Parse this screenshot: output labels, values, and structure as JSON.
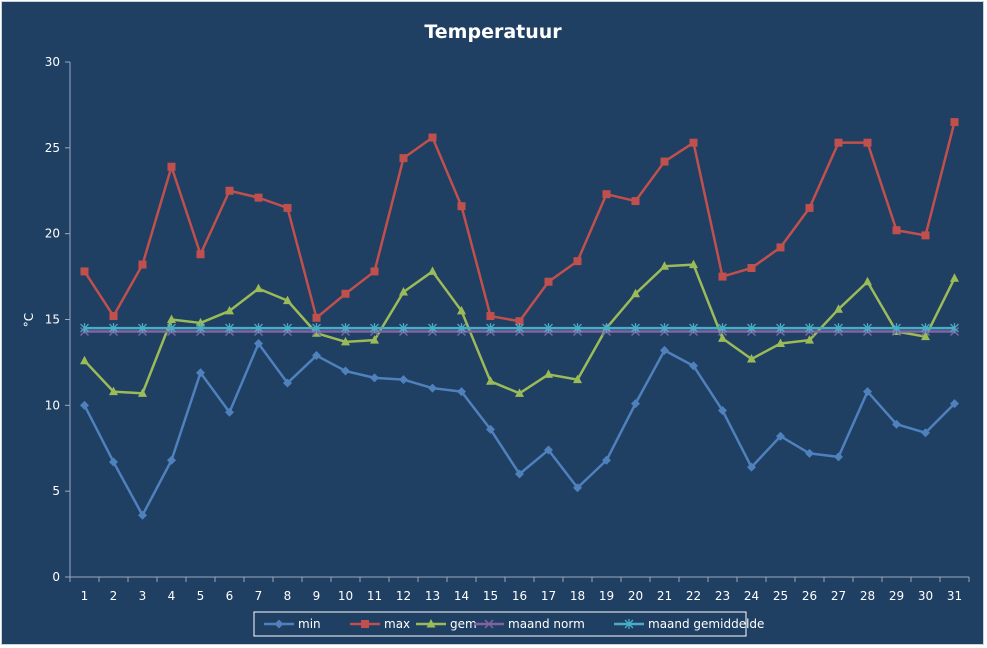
{
  "chart_data": {
    "type": "line",
    "title": "Temperatuur",
    "xlabel": "",
    "ylabel": "°C",
    "ylim": [
      0,
      30
    ],
    "yticks": [
      0,
      5,
      10,
      15,
      20,
      25,
      30
    ],
    "grid": false,
    "legend_position": "bottom",
    "categories": [
      "1",
      "2",
      "3",
      "4",
      "5",
      "6",
      "7",
      "8",
      "9",
      "10",
      "11",
      "12",
      "13",
      "14",
      "15",
      "16",
      "17",
      "18",
      "19",
      "20",
      "21",
      "22",
      "23",
      "24",
      "25",
      "26",
      "27",
      "28",
      "29",
      "30",
      "31"
    ],
    "series": [
      {
        "name": "min",
        "color": "#4f81bd",
        "marker": "diamond",
        "values": [
          10.0,
          6.7,
          3.6,
          6.8,
          11.9,
          9.6,
          13.6,
          11.3,
          12.9,
          12.0,
          11.6,
          11.5,
          11.0,
          10.8,
          8.6,
          6.0,
          7.4,
          5.2,
          6.8,
          10.1,
          13.2,
          12.3,
          9.7,
          6.4,
          8.2,
          7.2,
          7.0,
          10.8,
          8.9,
          8.4,
          10.1
        ]
      },
      {
        "name": "max",
        "color": "#c0504d",
        "marker": "square",
        "values": [
          17.8,
          15.2,
          18.2,
          23.9,
          18.8,
          22.5,
          22.1,
          21.5,
          15.1,
          16.5,
          17.8,
          24.4,
          25.6,
          21.6,
          15.2,
          14.9,
          17.2,
          18.4,
          22.3,
          21.9,
          24.2,
          25.3,
          17.5,
          18.0,
          19.2,
          21.5,
          25.3,
          25.3,
          20.2,
          19.9,
          26.5
        ]
      },
      {
        "name": "gem",
        "color": "#9bbb59",
        "marker": "triangle",
        "values": [
          12.6,
          10.8,
          10.7,
          15.0,
          14.8,
          15.5,
          16.8,
          16.1,
          14.2,
          13.7,
          13.8,
          16.6,
          17.8,
          15.5,
          11.4,
          10.7,
          11.8,
          11.5,
          14.5,
          16.5,
          18.1,
          18.2,
          13.9,
          12.7,
          13.6,
          13.8,
          15.6,
          17.2,
          14.3,
          14.0,
          17.4
        ]
      },
      {
        "name": "maand norm",
        "color": "#8064a2",
        "marker": "x",
        "values": [
          14.3,
          14.3,
          14.3,
          14.3,
          14.3,
          14.3,
          14.3,
          14.3,
          14.3,
          14.3,
          14.3,
          14.3,
          14.3,
          14.3,
          14.3,
          14.3,
          14.3,
          14.3,
          14.3,
          14.3,
          14.3,
          14.3,
          14.3,
          14.3,
          14.3,
          14.3,
          14.3,
          14.3,
          14.3,
          14.3,
          14.3
        ]
      },
      {
        "name": "maand gemiddelde",
        "color": "#4bacc6",
        "marker": "star",
        "values": [
          14.5,
          14.5,
          14.5,
          14.5,
          14.5,
          14.5,
          14.5,
          14.5,
          14.5,
          14.5,
          14.5,
          14.5,
          14.5,
          14.5,
          14.5,
          14.5,
          14.5,
          14.5,
          14.5,
          14.5,
          14.5,
          14.5,
          14.5,
          14.5,
          14.5,
          14.5,
          14.5,
          14.5,
          14.5,
          14.5,
          14.5
        ]
      }
    ]
  }
}
